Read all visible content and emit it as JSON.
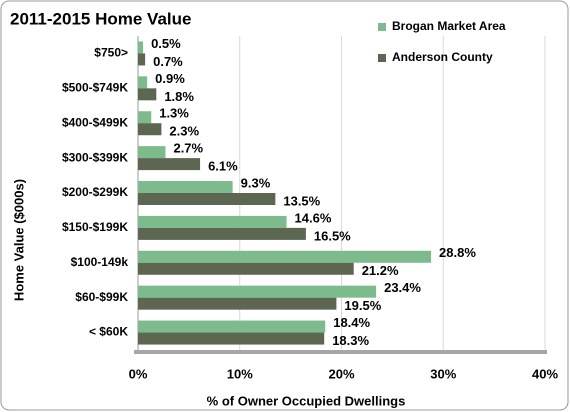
{
  "chart_data": {
    "type": "bar",
    "orientation": "horizontal",
    "title": "2011-2015 Home Value",
    "x_label": "% of Owner Occupied Dwellings",
    "y_label": "Home Value ($000s)",
    "categories": [
      "$750>",
      "$500-$749K",
      "$400-$499K",
      "$300-$399K",
      "$200-$299K",
      "$150-$199K",
      "$100-149k",
      "$60-$99K",
      "< $60K"
    ],
    "series": [
      {
        "name": "Brogan Market Area",
        "color": "#7dbb8c",
        "values": [
          0.5,
          0.9,
          1.3,
          2.7,
          9.3,
          14.6,
          28.8,
          23.4,
          18.4
        ],
        "value_labels": [
          "0.5%",
          "0.9%",
          "1.3%",
          "2.7%",
          "9.3%",
          "14.6%",
          "28.8%",
          "23.4%",
          "18.4%"
        ]
      },
      {
        "name": "Anderson County",
        "color": "#5c6651",
        "values": [
          0.7,
          1.8,
          2.3,
          6.1,
          13.5,
          16.5,
          21.2,
          19.5,
          18.3
        ],
        "value_labels": [
          "0.7%",
          "1.8%",
          "2.3%",
          "6.1%",
          "13.5%",
          "16.5%",
          "21.2%",
          "19.5%",
          "18.3%"
        ]
      }
    ],
    "xlim": [
      0,
      40
    ],
    "xticks": [
      {
        "value": 0,
        "label": "0%"
      },
      {
        "value": 10,
        "label": "10%"
      },
      {
        "value": 20,
        "label": "20%"
      },
      {
        "value": 30,
        "label": "30%"
      },
      {
        "value": 40,
        "label": "40%"
      }
    ],
    "grid": true,
    "legend": "upper right"
  }
}
